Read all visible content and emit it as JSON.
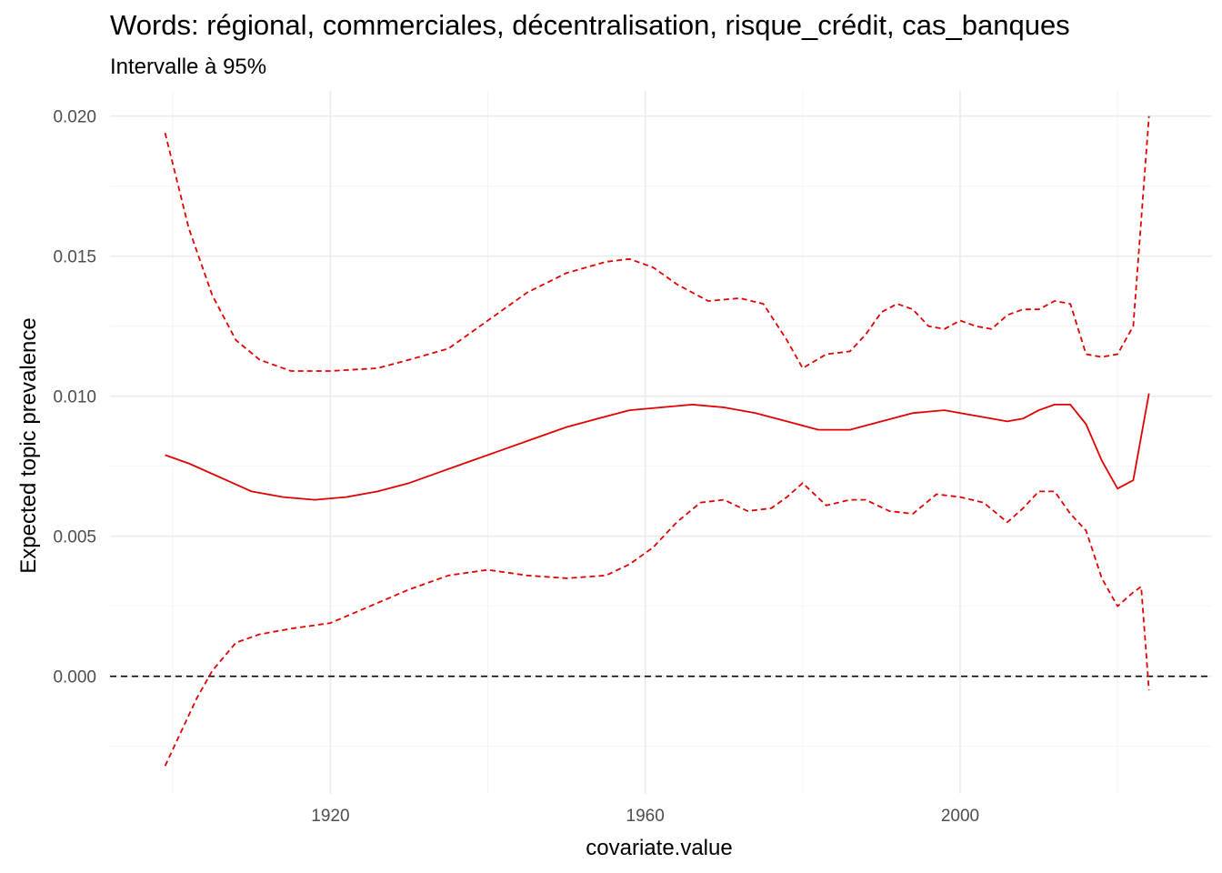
{
  "title": "Words: régional, commerciales, décentralisation, risque_crédit, cas_banques",
  "subtitle": "Intervalle à 95%",
  "colors": {
    "estimate": "#e00000",
    "ci": "#e00000",
    "zero_line": "#000000",
    "grid_major": "#ebebeb",
    "grid_minor": "#f4f4f4",
    "tick_text": "#4d4d4d"
  },
  "chart_data": {
    "type": "line",
    "xlabel": "covariate.value",
    "ylabel": "Expected topic prevalence",
    "xlim": [
      1892,
      2032
    ],
    "ylim": [
      -0.0042,
      0.0209
    ],
    "x_ticks": [
      1920,
      1960,
      2000
    ],
    "x_tick_labels": [
      "1920",
      "1960",
      "2000"
    ],
    "y_ticks": [
      0.0,
      0.005,
      0.01,
      0.015,
      0.02
    ],
    "y_tick_labels": [
      "0.000",
      "0.005",
      "0.010",
      "0.015",
      "0.020"
    ],
    "x_minor_ticks": [
      1900,
      1940,
      1980,
      2020
    ],
    "y_minor_ticks": [
      -0.0025,
      0.0025,
      0.0075,
      0.0125,
      0.0175
    ],
    "grid": true,
    "legend": "none",
    "reference_line": {
      "y": 0.0,
      "style": "dashed"
    },
    "series": [
      {
        "role": "estimate",
        "style": "solid",
        "x": [
          1899,
          1902,
          1906,
          1910,
          1914,
          1918,
          1922,
          1926,
          1930,
          1934,
          1938,
          1942,
          1946,
          1950,
          1954,
          1958,
          1962,
          1966,
          1970,
          1974,
          1978,
          1982,
          1986,
          1990,
          1994,
          1998,
          2002,
          2006,
          2008,
          2010,
          2012,
          2014,
          2016,
          2018,
          2020,
          2022,
          2024
        ],
        "y": [
          0.0079,
          0.0076,
          0.0071,
          0.0066,
          0.0064,
          0.0063,
          0.0064,
          0.0066,
          0.0069,
          0.0073,
          0.0077,
          0.0081,
          0.0085,
          0.0089,
          0.0092,
          0.0095,
          0.0096,
          0.0097,
          0.0096,
          0.0094,
          0.0091,
          0.0088,
          0.0088,
          0.0091,
          0.0094,
          0.0095,
          0.0093,
          0.0091,
          0.0092,
          0.0095,
          0.0097,
          0.0097,
          0.009,
          0.0077,
          0.0067,
          0.007,
          0.0101
        ]
      },
      {
        "role": "ci-upper",
        "style": "dashed",
        "x": [
          1899,
          1902,
          1905,
          1908,
          1911,
          1915,
          1920,
          1926,
          1930,
          1935,
          1940,
          1945,
          1950,
          1955,
          1958,
          1961,
          1964,
          1968,
          1972,
          1975,
          1978,
          1980,
          1983,
          1986,
          1988,
          1990,
          1992,
          1994,
          1996,
          1998,
          2000,
          2002,
          2004,
          2006,
          2008,
          2010,
          2012,
          2014,
          2016,
          2018,
          2020,
          2022,
          2024
        ],
        "y": [
          0.0194,
          0.016,
          0.0136,
          0.012,
          0.0113,
          0.0109,
          0.0109,
          0.011,
          0.0113,
          0.0117,
          0.0127,
          0.0137,
          0.0144,
          0.0148,
          0.0149,
          0.0146,
          0.014,
          0.0134,
          0.0135,
          0.0133,
          0.012,
          0.011,
          0.0115,
          0.0116,
          0.0122,
          0.013,
          0.0133,
          0.0131,
          0.0125,
          0.0124,
          0.0127,
          0.0125,
          0.0124,
          0.0129,
          0.0131,
          0.0131,
          0.0134,
          0.0133,
          0.0115,
          0.0114,
          0.0115,
          0.0125,
          0.02
        ]
      },
      {
        "role": "ci-lower",
        "style": "dashed",
        "x": [
          1899,
          1901,
          1903,
          1905,
          1908,
          1911,
          1915,
          1920,
          1925,
          1930,
          1935,
          1940,
          1945,
          1950,
          1955,
          1958,
          1961,
          1964,
          1967,
          1970,
          1973,
          1976,
          1978,
          1980,
          1983,
          1986,
          1988,
          1991,
          1994,
          1997,
          2000,
          2003,
          2006,
          2008,
          2010,
          2012,
          2014,
          2016,
          2018,
          2020,
          2022,
          2023,
          2024
        ],
        "y": [
          -0.0032,
          -0.002,
          -0.0008,
          0.0002,
          0.0012,
          0.0015,
          0.0017,
          0.0019,
          0.0025,
          0.0031,
          0.0036,
          0.0038,
          0.0036,
          0.0035,
          0.0036,
          0.004,
          0.0046,
          0.0055,
          0.0062,
          0.0063,
          0.0059,
          0.006,
          0.0064,
          0.0069,
          0.0061,
          0.0063,
          0.0063,
          0.0059,
          0.0058,
          0.0065,
          0.0064,
          0.0062,
          0.0055,
          0.006,
          0.0066,
          0.0066,
          0.0058,
          0.0052,
          0.0035,
          0.0025,
          0.003,
          0.0032,
          -0.0005
        ]
      }
    ]
  }
}
